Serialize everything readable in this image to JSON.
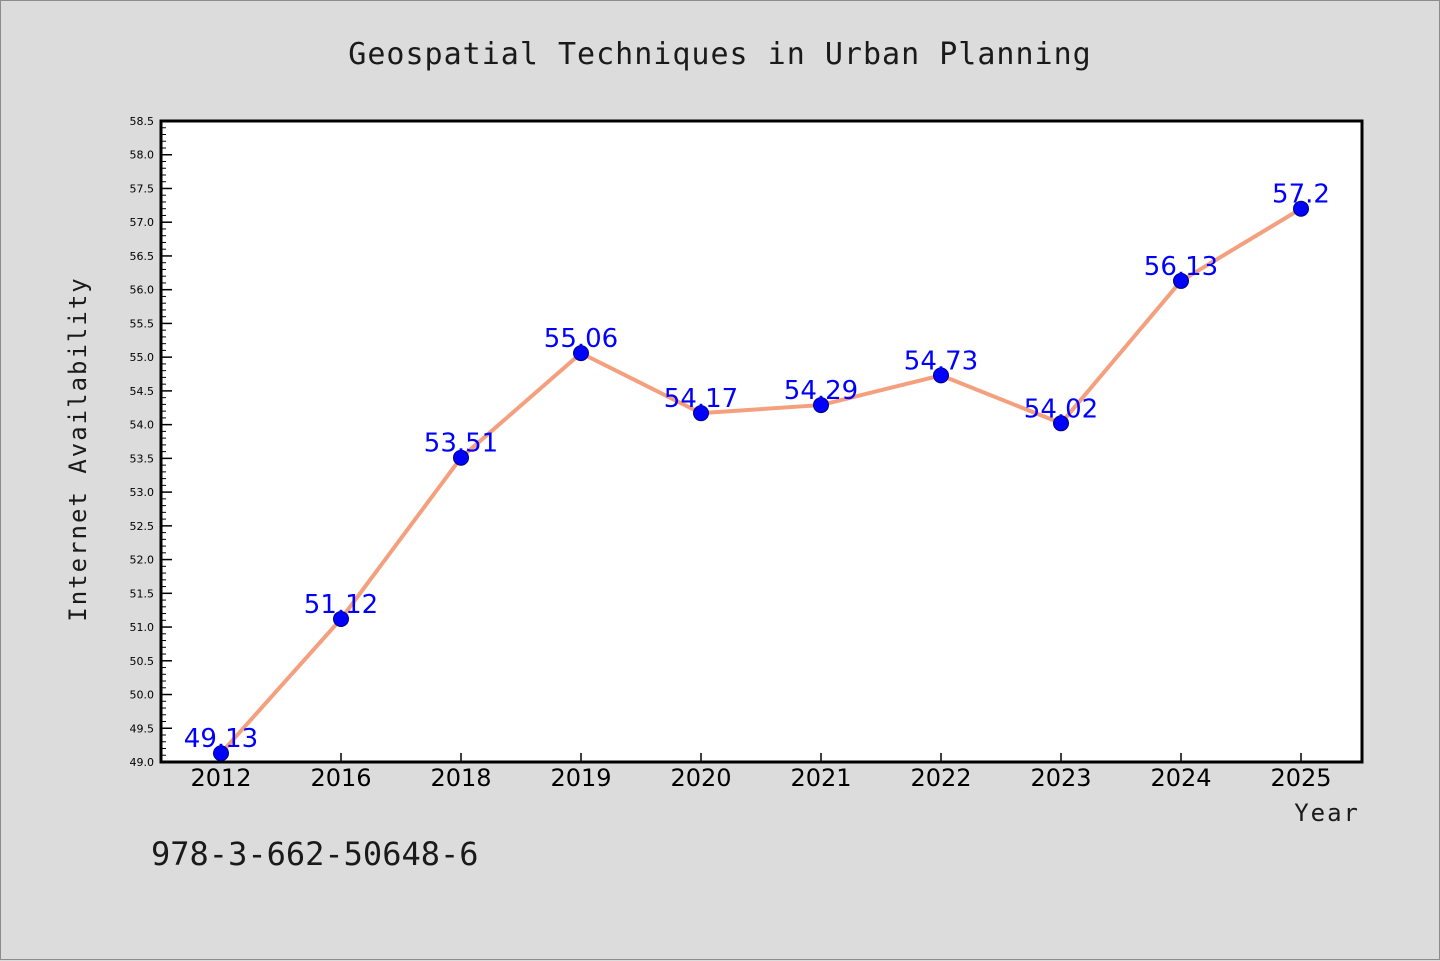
{
  "footer_code": "978-3-662-50648-6",
  "colors": {
    "background": "#dcdcdc",
    "plot_background": "#ffffff",
    "line": "#f4a07e",
    "marker_fill": "#0000ff",
    "marker_stroke": "#00007a",
    "data_label": "#0000ff"
  },
  "chart_data": {
    "type": "line",
    "title": "Geospatial Techniques in Urban Planning",
    "xlabel": "Year",
    "ylabel": "Internet Availability",
    "categories": [
      "2012",
      "2016",
      "2018",
      "2019",
      "2020",
      "2021",
      "2022",
      "2023",
      "2024",
      "2025"
    ],
    "series": [
      {
        "values": [
          49.13,
          51.12,
          53.51,
          55.06,
          54.17,
          54.29,
          54.73,
          54.02,
          56.13,
          57.2
        ],
        "data_labels": [
          "49.13",
          "51.12",
          "53.51",
          "55.06",
          "54.17",
          "54.29",
          "54.73",
          "54.02",
          "56.13",
          "57.2"
        ]
      }
    ],
    "ylim": [
      49.0,
      58.5
    ],
    "yticks": [
      "49.0",
      "49.5",
      "50.0",
      "50.5",
      "51.0",
      "51.5",
      "52.0",
      "52.5",
      "53.0",
      "53.5",
      "54.0",
      "54.5",
      "55.0",
      "55.5",
      "56.0",
      "56.5",
      "57.0",
      "57.5",
      "58.0",
      "58.5"
    ],
    "grid": false,
    "legend": "none",
    "marker": "circle"
  }
}
